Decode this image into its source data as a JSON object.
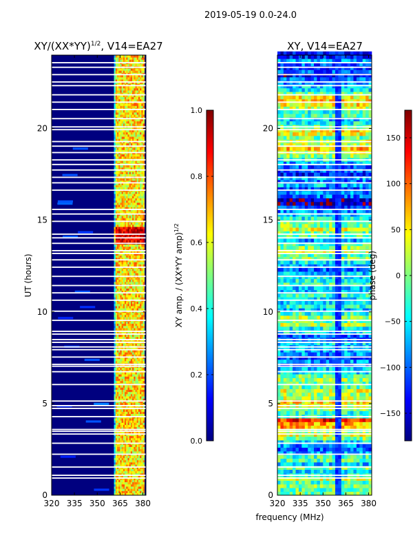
{
  "figure_title": "2019-05-19 0.0-24.0",
  "colors": {
    "jet": [
      "#00007f",
      "#0000ff",
      "#007fff",
      "#00ffff",
      "#7fff7f",
      "#ffff00",
      "#ff7f00",
      "#ff0000",
      "#7f0000"
    ],
    "gap": "#ffffff",
    "axis": "#000000"
  },
  "chart_data": [
    {
      "type": "heatmap",
      "title_prefix": "XY/(XX*YY)",
      "title_sup": "1/2",
      "title_suffix": ", V14=EA27",
      "xlabel": "",
      "ylabel": "UT (hours)",
      "xlim": [
        320,
        382
      ],
      "ylim": [
        0,
        24
      ],
      "xticks": [
        320,
        335,
        350,
        365,
        380
      ],
      "yticks": [
        0,
        5,
        10,
        15,
        20
      ],
      "band_start_mhz": 361,
      "band_end_mhz": 381,
      "band_channels": [
        363,
        366,
        368,
        371,
        374,
        377,
        379
      ],
      "hot_rows_hours": [
        13.6,
        14.6
      ]
    },
    {
      "type": "heatmap",
      "title": "XY, V14=EA27",
      "xlabel": "frequency (MHz)",
      "ylabel": "",
      "xlim": [
        320,
        382
      ],
      "ylim": [
        0,
        24
      ],
      "xticks": [
        320,
        335,
        350,
        365,
        380
      ],
      "yticks": [
        0,
        5,
        10,
        15,
        20
      ]
    }
  ],
  "colorbars": [
    {
      "label_prefix": "XY amp. / (XX*YY amp)",
      "label_sup": "1/2",
      "range": [
        0.0,
        1.0
      ],
      "ticks": [
        "0.0",
        "0.2",
        "0.4",
        "0.6",
        "0.8",
        "1.0"
      ]
    },
    {
      "label": "phase (deg)",
      "range": [
        -180,
        180
      ],
      "ticks": [
        "-150",
        "-100",
        "-50",
        "0",
        "50",
        "100",
        "150"
      ]
    }
  ],
  "gaps_hours": [
    0.9,
    1.05,
    1.5,
    2.2,
    2.8,
    3.3,
    3.45,
    3.55,
    4.25,
    4.7,
    4.85,
    5.1,
    6.0,
    6.7,
    7.0,
    7.1,
    7.5,
    7.9,
    8.05,
    8.3,
    8.45,
    8.75,
    8.9,
    9.5,
    10.0,
    10.6,
    11.0,
    11.4,
    11.9,
    12.4,
    12.8,
    13.15,
    13.3,
    13.7,
    14.0,
    14.2,
    14.9,
    15.3,
    15.55,
    16.6,
    17.0,
    17.3,
    17.7,
    18.0,
    18.25,
    18.65,
    19.0,
    19.25,
    19.9,
    20.05,
    20.5,
    21.0,
    21.4,
    21.8,
    22.3,
    22.5,
    22.9,
    23.3,
    23.55
  ]
}
